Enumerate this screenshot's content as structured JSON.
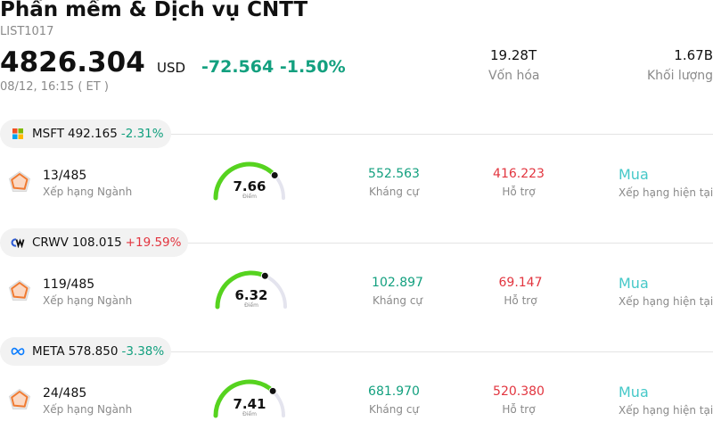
{
  "header": {
    "title": "Phần mềm & Dịch vụ CNTT",
    "code": "LIST1017",
    "price": "4826.304",
    "currency": "USD",
    "change": "-72.564",
    "change_pct": "-1.50%",
    "timestamp": "08/12, 16:15  ( ET )",
    "market_cap_value": "19.28T",
    "market_cap_label": "Vốn hóa",
    "volume_value": "1.67B",
    "volume_label": "Khối lượng"
  },
  "stocks": [
    {
      "symbol": "MSFT",
      "price": "492.165",
      "change_pct": "-2.31%",
      "logo_icon": "microsoft-logo",
      "rank": "13/485",
      "rank_label": "Xếp hạng Ngành",
      "score": "7.66",
      "score_value": 7.66,
      "score_label": "Điểm",
      "resistance": "552.563",
      "resistance_label": "Kháng cự",
      "support": "416.223",
      "support_label": "Hỗ trợ",
      "rating": "Mua",
      "rating_label": "Xếp hạng hiện tại"
    },
    {
      "symbol": "CRWV",
      "price": "108.015",
      "change_pct": "+19.59%",
      "logo_icon": "coreweave-logo",
      "rank": "119/485",
      "rank_label": "Xếp hạng Ngành",
      "score": "6.32",
      "score_value": 6.32,
      "score_label": "Điểm",
      "resistance": "102.897",
      "resistance_label": "Kháng cự",
      "support": "69.147",
      "support_label": "Hỗ trợ",
      "rating": "Mua",
      "rating_label": "Xếp hạng hiện tại"
    },
    {
      "symbol": "META",
      "price": "578.850",
      "change_pct": "-3.38%",
      "logo_icon": "meta-logo",
      "rank": "24/485",
      "rank_label": "Xếp hạng Ngành",
      "score": "7.41",
      "score_value": 7.41,
      "score_label": "Điểm",
      "resistance": "681.970",
      "resistance_label": "Kháng cự",
      "support": "520.380",
      "support_label": "Hỗ trợ",
      "rating": "Mua",
      "rating_label": "Xếp hạng hiện tại"
    }
  ],
  "colors": {
    "negative": "#13a07f",
    "positive": "#e2353f",
    "gauge_fill": "#56d31f",
    "gauge_track": "#e4e4ee",
    "rating": "#45c8c8"
  }
}
